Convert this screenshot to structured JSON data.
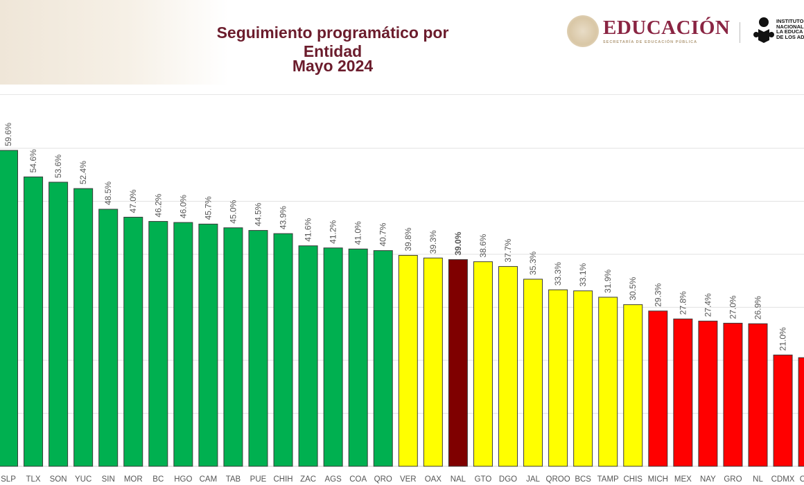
{
  "header": {
    "title_line1": "Seguimiento programático por Entidad",
    "title_line2": "Mayo 2024",
    "logo_main": "EDUCACIÓN",
    "logo_sub": "SECRETARÍA DE EDUCACIÓN PÚBLICA",
    "logo_inea": "INSTITUTO\nNACIONAL\nLA EDUCA\nDE LOS AD"
  },
  "colors": {
    "green": "#00b050",
    "yellow": "#ffff00",
    "red": "#ff0000",
    "national": "#7f0000",
    "title": "#6b1c2c"
  },
  "chart_data": {
    "type": "bar",
    "title": "Seguimiento programático por Entidad",
    "subtitle": "Mayo 2024",
    "ylim": [
      0,
      60
    ],
    "grid": true,
    "value_format": "percent",
    "categories": [
      "SLP",
      "TLX",
      "SON",
      "YUC",
      "SIN",
      "MOR",
      "BC",
      "HGO",
      "CAM",
      "TAB",
      "PUE",
      "CHIH",
      "ZAC",
      "AGS",
      "COA",
      "QRO",
      "VER",
      "OAX",
      "NAL",
      "GTO",
      "DGO",
      "JAL",
      "QROO",
      "BCS",
      "TAMP",
      "CHIS",
      "MICH",
      "MEX",
      "NAY",
      "GRO",
      "NL",
      "CDMX",
      "COL"
    ],
    "values": [
      59.6,
      54.6,
      53.6,
      52.4,
      48.5,
      47.0,
      46.2,
      46.0,
      45.7,
      45.0,
      44.5,
      43.9,
      41.6,
      41.2,
      41.0,
      40.7,
      39.8,
      39.3,
      39.0,
      38.6,
      37.7,
      35.3,
      33.3,
      33.1,
      31.9,
      30.5,
      29.3,
      27.8,
      27.4,
      27.0,
      26.9,
      21.0,
      20.5
    ],
    "labels": [
      "59.6%",
      "54.6%",
      "53.6%",
      "52.4%",
      "48.5%",
      "47.0%",
      "46.2%",
      "46.0%",
      "45.7%",
      "45.0%",
      "44.5%",
      "43.9%",
      "41.6%",
      "41.2%",
      "41.0%",
      "40.7%",
      "39.8%",
      "39.3%",
      "39.0%",
      "38.6%",
      "37.7%",
      "35.3%",
      "33.3%",
      "33.1%",
      "31.9%",
      "30.5%",
      "29.3%",
      "27.8%",
      "27.4%",
      "27.0%",
      "26.9%",
      "21.0%",
      ""
    ],
    "bar_colors": [
      "green",
      "green",
      "green",
      "green",
      "green",
      "green",
      "green",
      "green",
      "green",
      "green",
      "green",
      "green",
      "green",
      "green",
      "green",
      "green",
      "yellow",
      "yellow",
      "national",
      "yellow",
      "yellow",
      "yellow",
      "yellow",
      "yellow",
      "yellow",
      "yellow",
      "red",
      "red",
      "red",
      "red",
      "red",
      "red",
      "red"
    ]
  }
}
